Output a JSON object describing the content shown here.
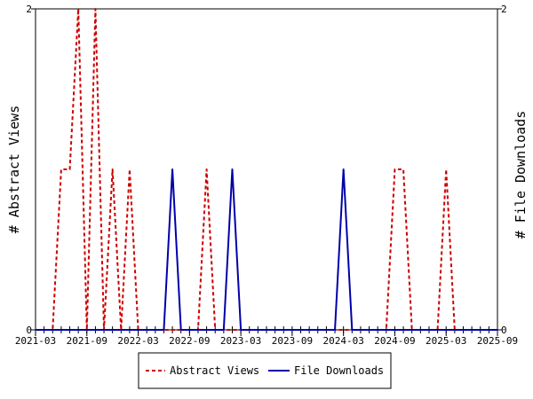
{
  "chart_data": {
    "type": "line",
    "title": "",
    "ylabel_left": "# Abstract Views",
    "ylabel_right": "# File Downloads",
    "ylim": [
      0,
      2
    ],
    "y_ticks": [
      "0",
      "2"
    ],
    "x_tick_labels": [
      "2021-03",
      "2021-09",
      "2022-03",
      "2022-09",
      "2023-03",
      "2023-09",
      "2024-03",
      "2024-09",
      "2025-03",
      "2025-09"
    ],
    "x_months": [
      "2021-03",
      "2021-04",
      "2021-05",
      "2021-06",
      "2021-07",
      "2021-08",
      "2021-09",
      "2021-10",
      "2021-11",
      "2021-12",
      "2022-01",
      "2022-02",
      "2022-03",
      "2022-04",
      "2022-05",
      "2022-06",
      "2022-07",
      "2022-08",
      "2022-09",
      "2022-10",
      "2022-11",
      "2022-12",
      "2023-01",
      "2023-02",
      "2023-03",
      "2023-04",
      "2023-05",
      "2023-06",
      "2023-07",
      "2023-08",
      "2023-09",
      "2023-10",
      "2023-11",
      "2023-12",
      "2024-01",
      "2024-02",
      "2024-03",
      "2024-04",
      "2024-05",
      "2024-06",
      "2024-07",
      "2024-08",
      "2024-09",
      "2024-10",
      "2024-11",
      "2024-12",
      "2025-01",
      "2025-02",
      "2025-03",
      "2025-04",
      "2025-05",
      "2025-06",
      "2025-07",
      "2025-08",
      "2025-09"
    ],
    "series": [
      {
        "name": "Abstract Views",
        "color": "#cc0000",
        "style": "dashed",
        "axis": "left",
        "values": [
          0,
          0,
          0,
          1,
          1,
          2,
          0,
          2,
          0,
          1,
          0,
          1,
          0,
          0,
          0,
          0,
          0,
          0,
          0,
          0,
          1,
          0,
          0,
          0,
          0,
          0,
          0,
          0,
          0,
          0,
          0,
          0,
          0,
          0,
          0,
          0,
          0,
          0,
          0,
          0,
          0,
          0,
          1,
          1,
          0,
          0,
          0,
          0,
          1,
          0,
          0,
          0,
          0,
          0,
          0
        ]
      },
      {
        "name": "File Downloads",
        "color": "#0000aa",
        "style": "solid",
        "axis": "right",
        "values": [
          0,
          0,
          0,
          0,
          0,
          0,
          0,
          0,
          0,
          0,
          0,
          0,
          0,
          0,
          0,
          0,
          1,
          0,
          0,
          0,
          0,
          0,
          0,
          1,
          0,
          0,
          0,
          0,
          0,
          0,
          0,
          0,
          0,
          0,
          0,
          0,
          1,
          0,
          0,
          0,
          0,
          0,
          0,
          0,
          0,
          0,
          0,
          0,
          0,
          0,
          0,
          0,
          0,
          0,
          0
        ]
      }
    ],
    "grid": false,
    "legend_position": "bottom"
  }
}
